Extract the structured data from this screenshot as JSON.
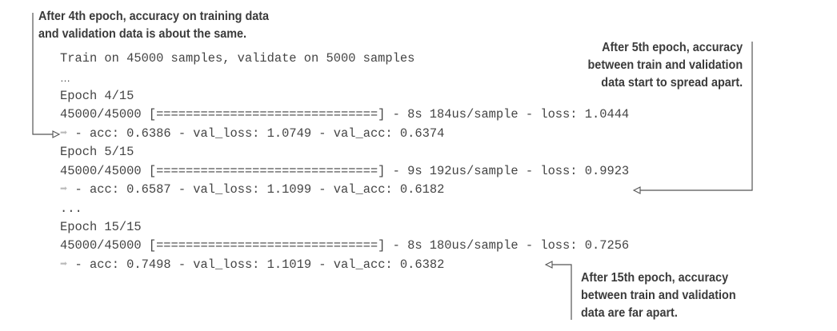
{
  "annotations": {
    "epoch4": [
      "After 4th epoch, accuracy on training data",
      "and validation data is about the same."
    ],
    "epoch5": [
      "After 5th epoch, accuracy",
      "between train and validation",
      "data start to spread apart."
    ],
    "epoch15": [
      "After 15th epoch, accuracy",
      "between train and validation",
      "data are far apart."
    ]
  },
  "code": {
    "header": "Train on 45000 samples, validate on 5000 samples",
    "ellipsis1": "…",
    "epoch4_title": "Epoch 4/15",
    "epoch4_progress": "45000/45000 [==============================] - 8s 184us/sample - loss: 1.0444",
    "epoch4_metrics": " - acc: 0.6386 - val_loss: 1.0749 - val_acc: 0.6374",
    "epoch5_title": "Epoch 5/15",
    "epoch5_progress": "45000/45000 [==============================] - 9s 192us/sample - loss: 0.9923",
    "epoch5_metrics": " - acc: 0.6587 - val_loss: 1.1099 - val_acc: 0.6182",
    "ellipsis2": "...",
    "epoch15_title": "Epoch 15/15",
    "epoch15_progress": "45000/45000 [==============================] - 8s 180us/sample - loss: 0.7256",
    "epoch15_metrics": " - acc: 0.7498 - val_loss: 1.1019 - val_acc: 0.6382",
    "continuation_arrow": "➡"
  },
  "colors": {
    "text": "#444444",
    "annotation": "#3b3b3b",
    "leader_line": "#555555",
    "continuation_arrow": "#b9b9b9"
  }
}
